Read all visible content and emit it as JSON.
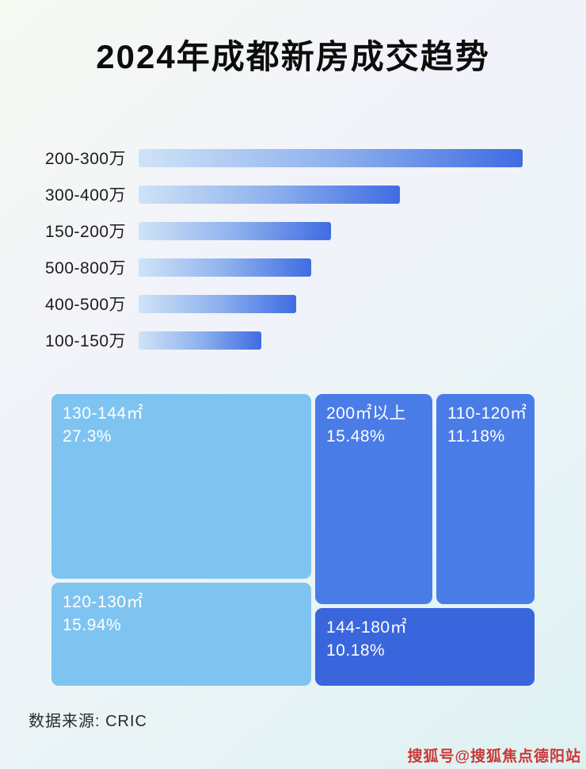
{
  "page": {
    "title": "2024年成都新房成交趋势",
    "source": "数据来源: CRIC",
    "watermark": "搜狐号@搜狐焦点德阳站"
  },
  "chart_data": [
    {
      "type": "bar",
      "orientation": "horizontal",
      "title": "2024年成都新房成交趋势 - 总价段排行",
      "categories": [
        "200-300万",
        "300-400万",
        "150-200万",
        "500-800万",
        "400-500万",
        "100-150万"
      ],
      "values": [
        100,
        68,
        50,
        45,
        41,
        32
      ],
      "value_note": "条形无数值标注，数值为按像素长度估算的相对值（最长条=100）",
      "xlim": [
        0,
        100
      ],
      "grid": false,
      "legend": false
    },
    {
      "type": "treemap",
      "title": "2024年成都新房成交面积段占比",
      "items": [
        {
          "label": "130-144㎡",
          "value": 27.3,
          "value_text": "27.3%"
        },
        {
          "label": "200㎡以上",
          "value": 15.48,
          "value_text": "15.48%"
        },
        {
          "label": "110-120㎡",
          "value": 11.18,
          "value_text": "11.18%"
        },
        {
          "label": "120-130㎡",
          "value": 15.94,
          "value_text": "15.94%"
        },
        {
          "label": "144-180㎡",
          "value": 10.18,
          "value_text": "10.18%"
        }
      ]
    }
  ],
  "colors": {
    "bar_gradient_start": "#cfe3f7",
    "bar_gradient_end": "#3f6ce2",
    "treemap_light_blue": "#7fc4f0",
    "treemap_medium_blue": "#4a7ce8",
    "treemap_dark_blue": "#3a66dd",
    "watermark_red": "#cc3636"
  }
}
